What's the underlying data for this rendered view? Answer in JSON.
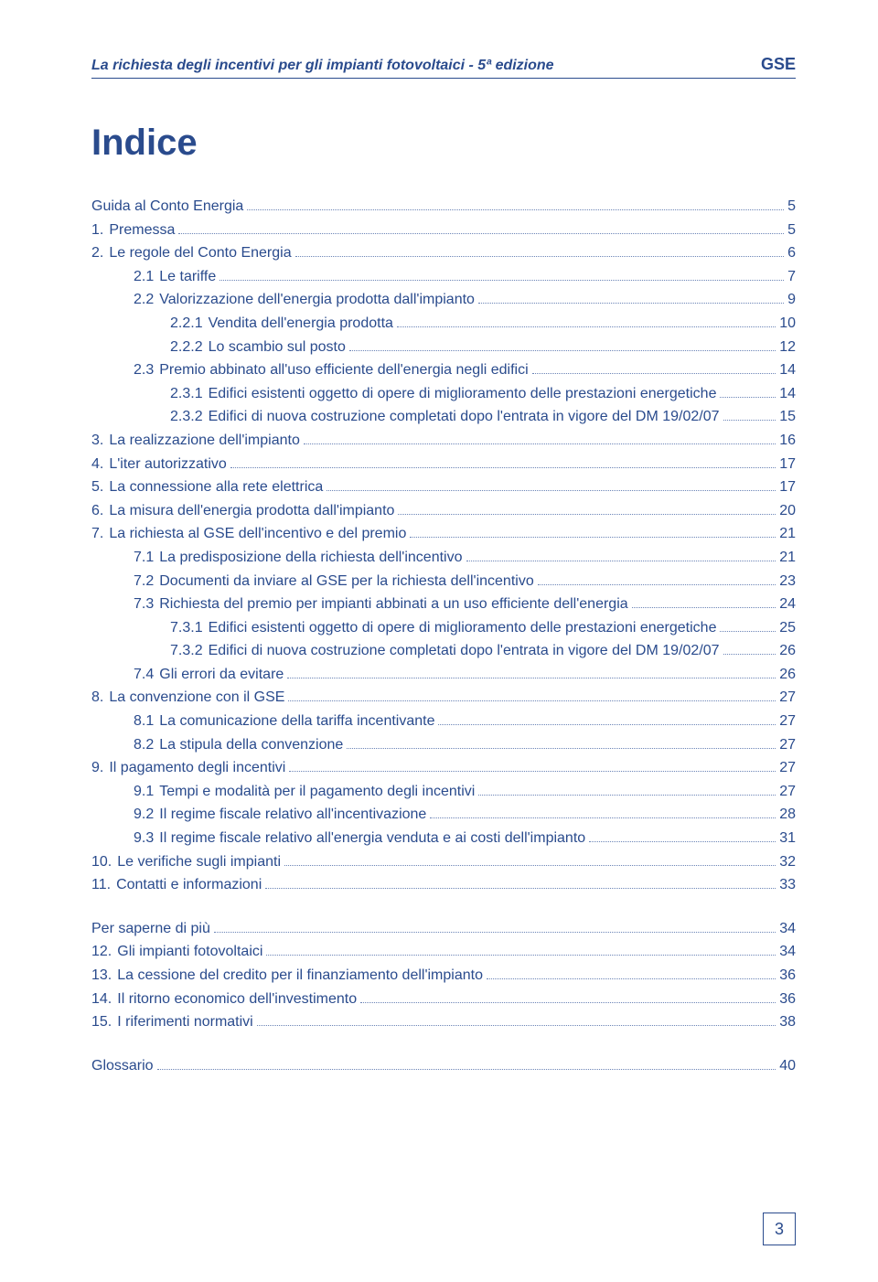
{
  "colors": {
    "primary": "#2a4b8d",
    "leader": "#6b84b6",
    "background": "#ffffff"
  },
  "typography": {
    "body_fontsize": 16,
    "heading_fontsize": 40,
    "header_fontsize": 16
  },
  "header": {
    "title": "La richiesta degli incentivi per gli impianti fotovoltaici - 5ª edizione",
    "right": "GSE"
  },
  "heading": "Indice",
  "toc": [
    {
      "num": "",
      "label": "Guida al Conto Energia",
      "page": "5",
      "indent": 0
    },
    {
      "num": "1.",
      "label": "Premessa",
      "page": "5",
      "indent": 0
    },
    {
      "num": "2.",
      "label": "Le regole del Conto Energia",
      "page": "6",
      "indent": 0
    },
    {
      "num": "2.1",
      "label": "Le tariffe",
      "page": "7",
      "indent": 1
    },
    {
      "num": "2.2",
      "label": "Valorizzazione dell'energia prodotta dall'impianto",
      "page": "9",
      "indent": 1
    },
    {
      "num": "2.2.1",
      "label": "Vendita dell'energia prodotta",
      "page": "10",
      "indent": 2
    },
    {
      "num": "2.2.2",
      "label": "Lo scambio sul posto",
      "page": "12",
      "indent": 2
    },
    {
      "num": "2.3",
      "label": "Premio abbinato all'uso efficiente dell'energia negli edifici",
      "page": "14",
      "indent": 1
    },
    {
      "num": "2.3.1",
      "label": "Edifici esistenti oggetto di opere di miglioramento delle prestazioni energetiche",
      "page": "14",
      "indent": 2,
      "multiline": false
    },
    {
      "num": "2.3.2",
      "label": "Edifici di nuova costruzione completati dopo l'entrata in vigore del DM 19/02/07",
      "page": "15",
      "indent": 2,
      "multiline": true
    },
    {
      "num": "3.",
      "label": "La realizzazione dell'impianto",
      "page": "16",
      "indent": 0
    },
    {
      "num": "4.",
      "label": "L'iter autorizzativo",
      "page": "17",
      "indent": 0
    },
    {
      "num": "5.",
      "label": "La connessione alla rete elettrica",
      "page": "17",
      "indent": 0
    },
    {
      "num": "6.",
      "label": "La misura dell'energia prodotta dall'impianto",
      "page": "20",
      "indent": 0
    },
    {
      "num": "7.",
      "label": "La richiesta al GSE dell'incentivo e del premio",
      "page": "21",
      "indent": 0
    },
    {
      "num": "7.1",
      "label": "La predisposizione della richiesta dell'incentivo",
      "page": "21",
      "indent": 1
    },
    {
      "num": "7.2",
      "label": "Documenti da inviare al GSE per la richiesta dell'incentivo",
      "page": "23",
      "indent": 1
    },
    {
      "num": "7.3",
      "label": "Richiesta del premio per impianti abbinati a un uso efficiente dell'energia",
      "page": "24",
      "indent": 1
    },
    {
      "num": "7.3.1",
      "label": "Edifici esistenti oggetto di opere di miglioramento delle prestazioni energetiche",
      "page": "25",
      "indent": 2,
      "multiline": true
    },
    {
      "num": "7.3.2",
      "label": "Edifici di nuova costruzione completati dopo l'entrata in vigore del DM 19/02/07",
      "page": "26",
      "indent": 2,
      "multiline": true
    },
    {
      "num": "7.4",
      "label": "Gli errori da evitare",
      "page": "26",
      "indent": 1
    },
    {
      "num": "8.",
      "label": "La convenzione con il GSE",
      "page": "27",
      "indent": 0
    },
    {
      "num": "8.1",
      "label": "La comunicazione della tariffa incentivante",
      "page": "27",
      "indent": 1
    },
    {
      "num": "8.2",
      "label": "La stipula della convenzione",
      "page": "27",
      "indent": 1
    },
    {
      "num": "9.",
      "label": "Il pagamento degli incentivi",
      "page": "27",
      "indent": 0
    },
    {
      "num": "9.1",
      "label": "Tempi e modalità per il pagamento degli incentivi",
      "page": "27",
      "indent": 1
    },
    {
      "num": "9.2",
      "label": "Il regime fiscale relativo all'incentivazione",
      "page": "28",
      "indent": 1
    },
    {
      "num": "9.3",
      "label": "Il regime fiscale relativo all'energia venduta e ai costi dell'impianto",
      "page": "31",
      "indent": 1
    },
    {
      "num": "10.",
      "label": "Le verifiche sugli impianti",
      "page": "32",
      "indent": 0
    },
    {
      "num": "11.",
      "label": "Contatti e informazioni",
      "page": "33",
      "indent": 0
    }
  ],
  "toc2": [
    {
      "num": "",
      "label": "Per saperne di più",
      "page": "34",
      "indent": 0
    },
    {
      "num": "12.",
      "label": "Gli impianti fotovoltaici",
      "page": "34",
      "indent": 0
    },
    {
      "num": "13.",
      "label": "La cessione del credito per il finanziamento dell'impianto",
      "page": "36",
      "indent": 0
    },
    {
      "num": "14.",
      "label": "Il ritorno economico dell'investimento",
      "page": "36",
      "indent": 0
    },
    {
      "num": "15.",
      "label": "I riferimenti normativi",
      "page": "38",
      "indent": 0
    }
  ],
  "toc3": [
    {
      "num": "",
      "label": "Glossario",
      "page": "40",
      "indent": 0
    }
  ],
  "page_number": "3"
}
